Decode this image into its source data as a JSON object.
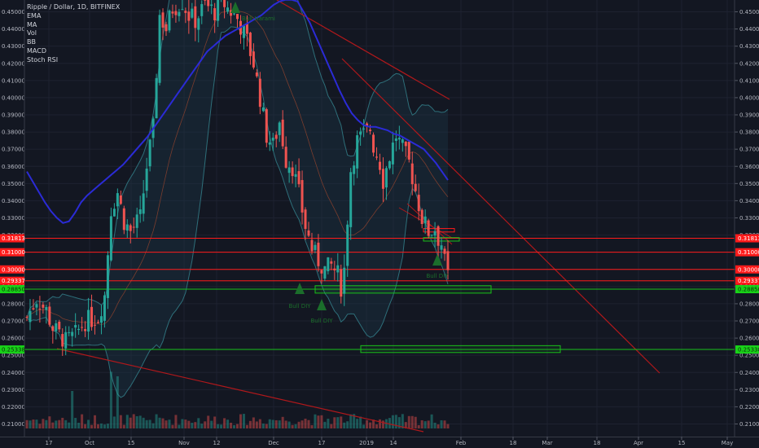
{
  "header": {
    "title": "Ripple / Dollar, 1D, BITFINEX",
    "indicators": [
      "EMA",
      "MA",
      "Vol",
      "BB",
      "MACD",
      "Stoch RSI"
    ]
  },
  "colors": {
    "background": "#131722",
    "up": "#26a69a",
    "down": "#ef5350",
    "ema": "#2b2bd6",
    "trendline": "#b0181b",
    "support_zone": "#19c119",
    "resistance_tag": "#ff1b1b",
    "support_tag": "#19d219"
  },
  "chart_data": {
    "type": "candlestick",
    "title": "Ripple / Dollar, 1D, BITFINEX",
    "xlabel": "",
    "ylabel": "",
    "ylim": [
      0.205,
      0.457
    ],
    "y_ticks": [
      "0.45000",
      "0.44000",
      "0.43000",
      "0.42000",
      "0.41000",
      "0.40000",
      "0.39000",
      "0.38000",
      "0.37000",
      "0.36000",
      "0.35000",
      "0.34000",
      "0.33000",
      "0.32000",
      "0.31000",
      "0.30000",
      "0.29000",
      "0.28000",
      "0.27000",
      "0.26000",
      "0.25000",
      "0.24000",
      "0.23000",
      "0.22000",
      "0.21000"
    ],
    "x_ticks": [
      "17",
      "Oct",
      "15",
      "Nov",
      "12",
      "Dec",
      "17",
      "2019",
      "14",
      "Feb",
      "18",
      "Mar",
      "18",
      "Apr",
      "15",
      "May"
    ],
    "horizontal_levels": [
      {
        "label": "0.31813",
        "value": 0.31813,
        "kind": "resistance"
      },
      {
        "label": "0.31000",
        "value": 0.31,
        "kind": "resistance"
      },
      {
        "label": "0.30000",
        "value": 0.3,
        "kind": "resistance"
      },
      {
        "label": "0.29337",
        "value": 0.29337,
        "kind": "resistance"
      },
      {
        "label": "0.28850",
        "value": 0.2885,
        "kind": "support"
      },
      {
        "label": "0.25338",
        "value": 0.25338,
        "kind": "support"
      }
    ],
    "left_scale_tags": [
      "0.31813",
      "0.31000",
      "0.30000",
      "0.29337",
      "0.28850",
      "0.25338"
    ],
    "annotations": [
      "Bull Harami",
      "Bull DIY",
      "Bull DIY",
      "Bull DIY"
    ],
    "support_zones": [
      {
        "y_top": 0.2905,
        "y_bottom": 0.2862
      },
      {
        "y_top": 0.2556,
        "y_bottom": 0.2516
      }
    ],
    "ema_series": [
      0.357,
      0.351,
      0.345,
      0.339,
      0.334,
      0.33,
      0.327,
      0.328,
      0.333,
      0.339,
      0.343,
      0.346,
      0.349,
      0.352,
      0.355,
      0.358,
      0.361,
      0.365,
      0.369,
      0.373,
      0.377,
      0.382,
      0.387,
      0.392,
      0.397,
      0.402,
      0.407,
      0.412,
      0.417,
      0.422,
      0.427,
      0.43,
      0.433,
      0.436,
      0.438,
      0.44,
      0.442,
      0.444,
      0.446,
      0.448,
      0.451,
      0.454,
      0.456,
      0.457,
      0.457,
      0.456,
      0.45,
      0.444,
      0.436,
      0.428,
      0.42,
      0.412,
      0.404,
      0.397,
      0.391,
      0.387,
      0.384,
      0.383,
      0.383,
      0.382,
      0.381,
      0.379,
      0.378,
      0.376,
      0.374,
      0.372,
      0.37,
      0.366,
      0.362,
      0.357,
      0.352
    ],
    "candles_description": "Daily XRP/USD candles from mid-September 2018 to late January 2019, ranging roughly 0.25 to 0.457"
  }
}
